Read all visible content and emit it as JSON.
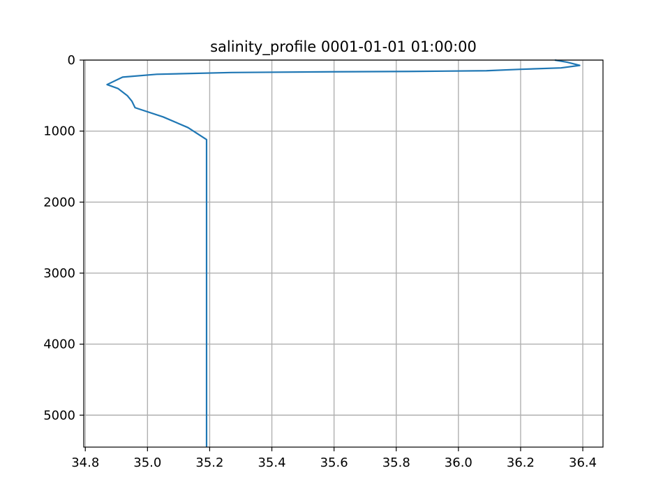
{
  "chart_data": {
    "type": "line",
    "title": "salinity_profile 0001-01-01 01:00:00",
    "xlabel": "",
    "ylabel": "",
    "xlim": [
      34.795,
      36.465
    ],
    "ylim": [
      5450,
      0
    ],
    "y_inverted": true,
    "grid": true,
    "legend": "none",
    "xticks": [
      34.8,
      35.0,
      35.2,
      35.4,
      35.6,
      35.8,
      36.0,
      36.2,
      36.4
    ],
    "xtick_labels": [
      "34.8",
      "35.0",
      "35.2",
      "35.4",
      "35.6",
      "35.8",
      "36.0",
      "36.2",
      "36.4"
    ],
    "yticks": [
      0,
      1000,
      2000,
      3000,
      4000,
      5000
    ],
    "ytick_labels": [
      "0",
      "1000",
      "2000",
      "3000",
      "4000",
      "5000"
    ],
    "colors": {
      "line": "#1f77b4",
      "grid": "#b0b0b0",
      "axes": "#000000"
    },
    "series": [
      {
        "x": [
          36.31,
          36.35,
          36.39,
          36.33,
          36.2,
          36.09,
          35.84,
          35.6,
          35.27,
          35.03,
          34.92,
          34.87,
          34.905,
          34.935,
          34.95,
          34.96,
          35.05,
          35.13,
          35.19,
          35.19
        ],
        "y": [
          0,
          30,
          75,
          110,
          130,
          150,
          160,
          165,
          175,
          200,
          240,
          345,
          400,
          500,
          580,
          670,
          800,
          950,
          1120,
          5450
        ]
      }
    ]
  }
}
